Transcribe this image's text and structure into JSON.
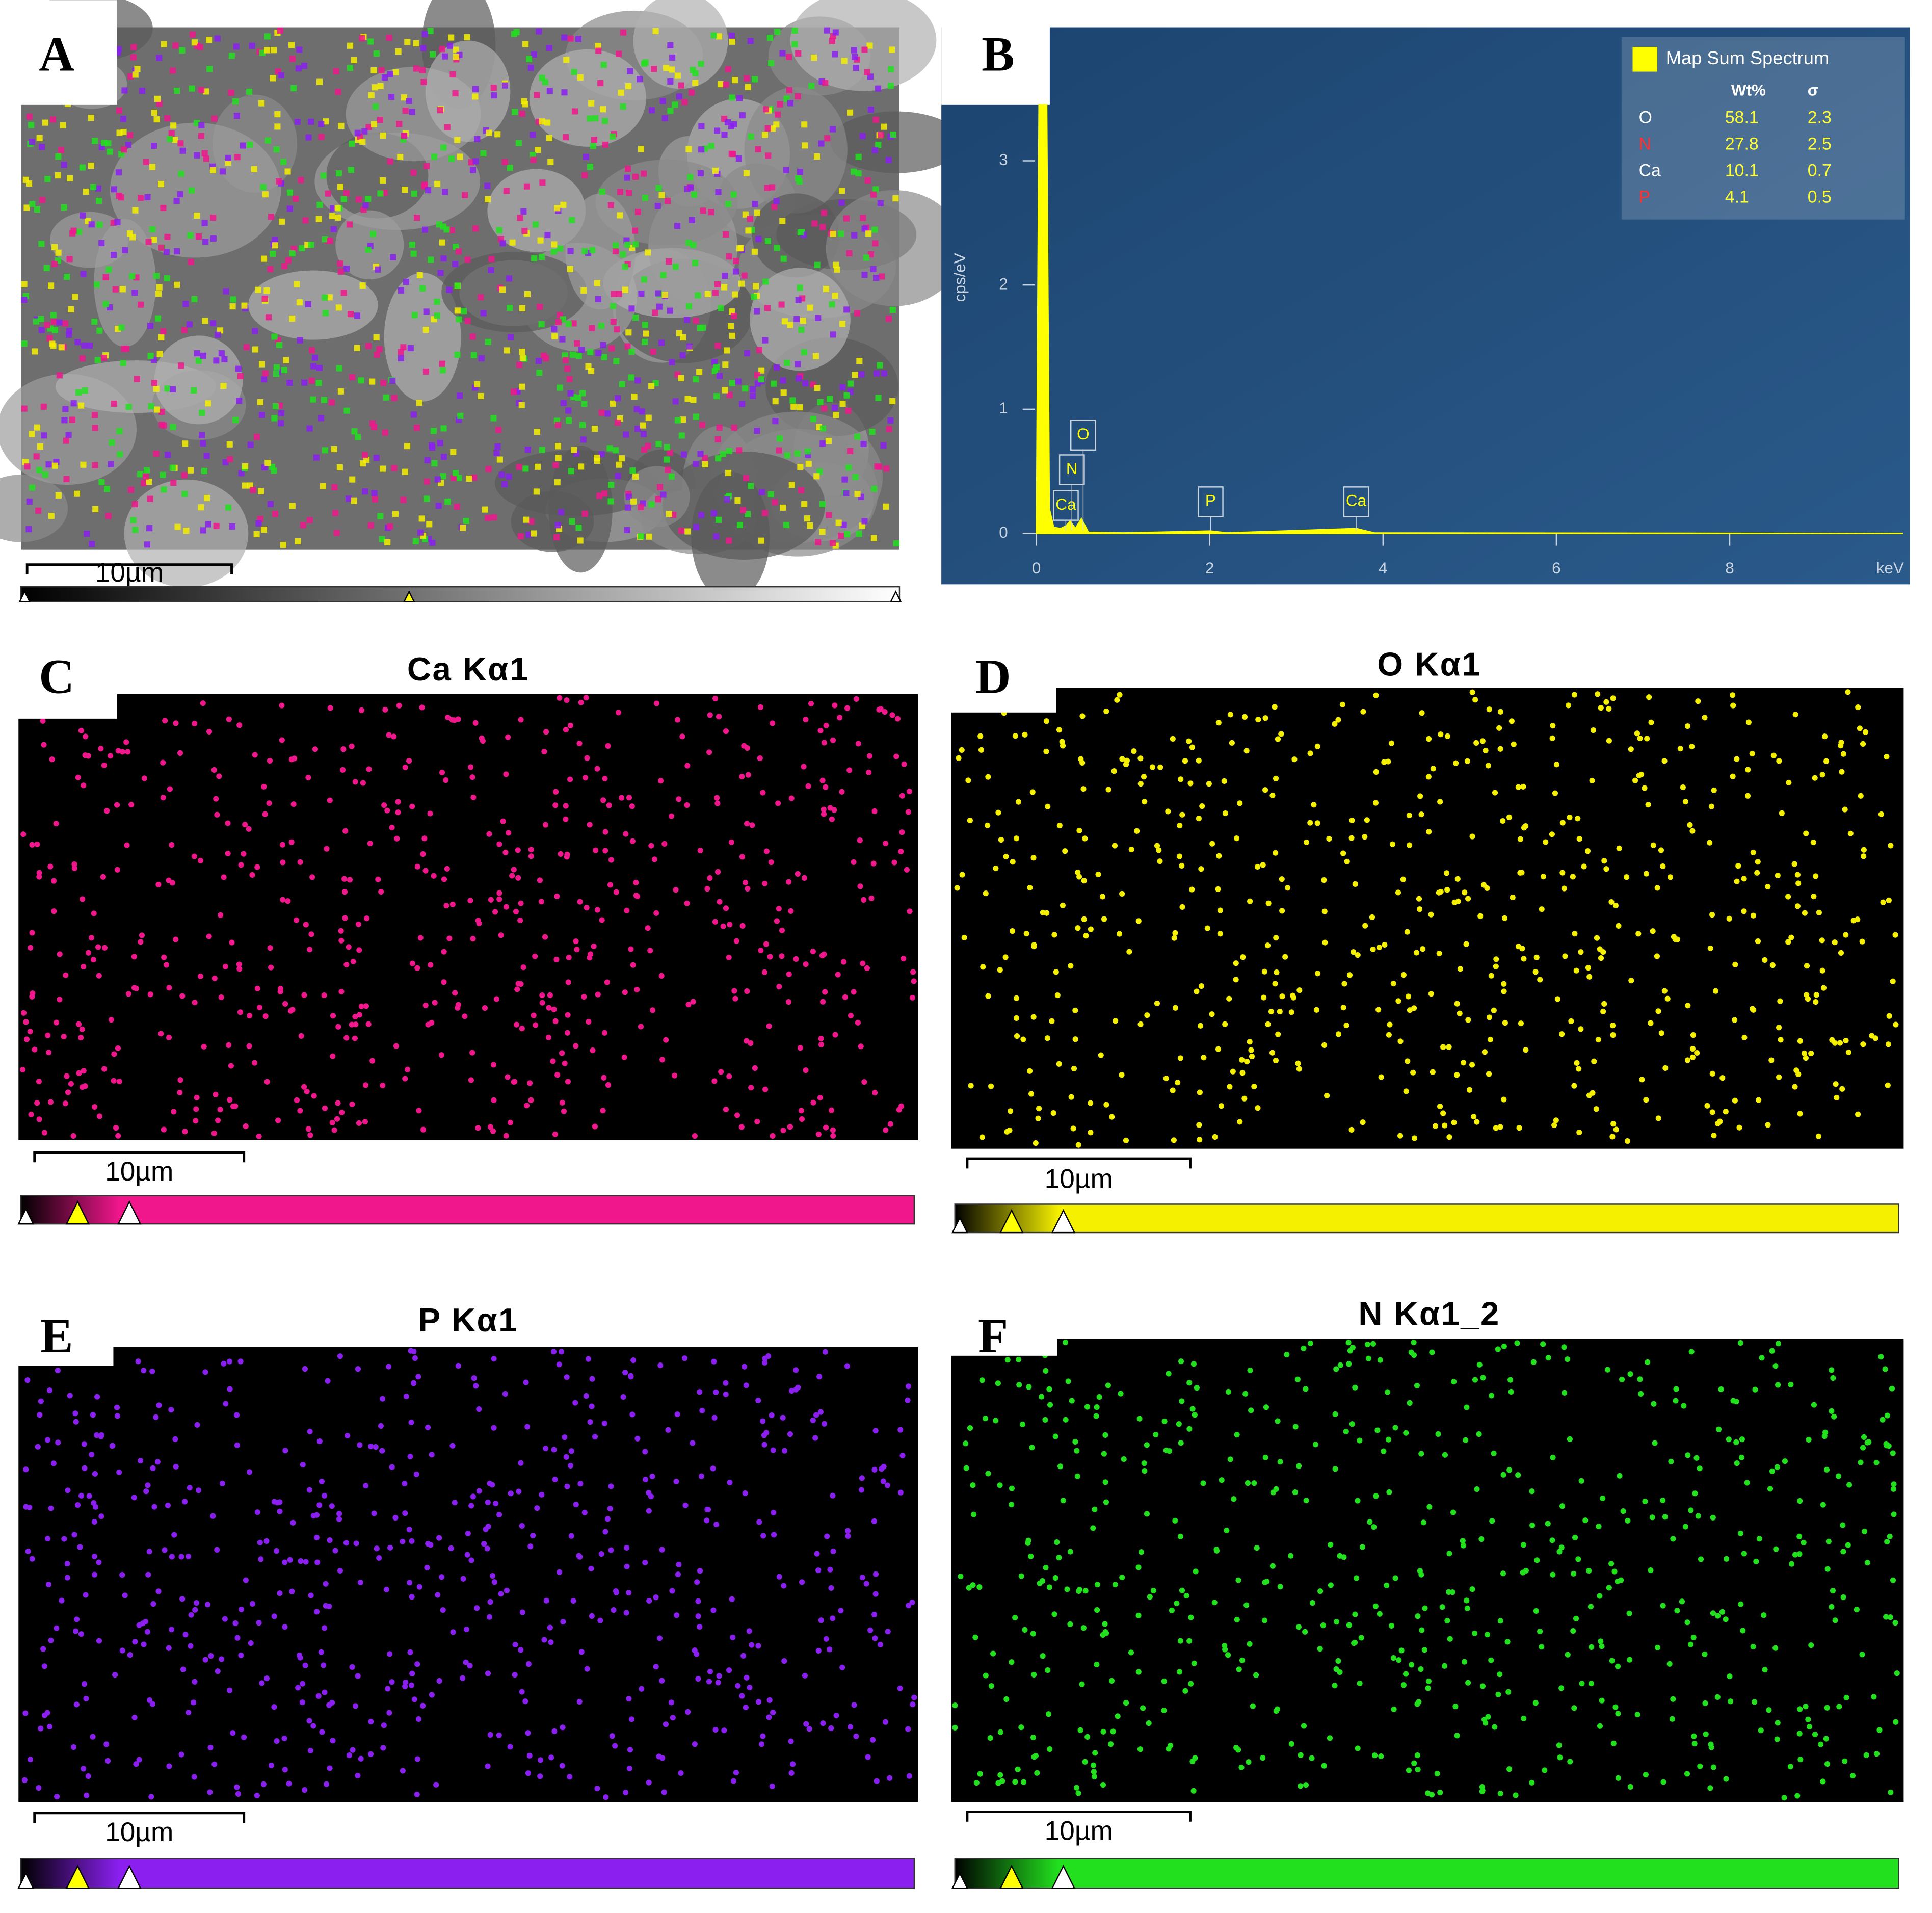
{
  "panels": [
    {
      "label": "A",
      "scale_bar": "10µm"
    },
    {
      "label": "B"
    },
    {
      "label": "C",
      "title": "Ca Kα1",
      "scale_bar": "10µm",
      "color": "#f0168c"
    },
    {
      "label": "D",
      "title": "O Kα1",
      "scale_bar": "10µm",
      "color": "#f5f000"
    },
    {
      "label": "E",
      "title": "P Kα1",
      "scale_bar": "10µm",
      "color": "#8a1ff0"
    },
    {
      "label": "F",
      "title": "N Kα1_2",
      "scale_bar": "10µm",
      "color": "#22e01e"
    }
  ],
  "chart_data": {
    "type": "area",
    "y_label": "cps/eV",
    "x_label": "keV",
    "color": "#ffff00",
    "x": [
      0,
      0.03,
      0.12,
      0.15,
      0.2,
      0.28,
      0.34,
      0.39,
      0.45,
      0.52,
      0.6,
      1.0,
      2.01,
      2.2,
      3.69,
      3.9,
      10
    ],
    "values": [
      0,
      3.45,
      3.45,
      0.2,
      0.05,
      0.04,
      0.06,
      0.1,
      0.04,
      0.12,
      0.01,
      0.005,
      0.02,
      0.005,
      0.04,
      0.005,
      0
    ],
    "xlim": [
      -0.3,
      10.05
    ],
    "ylim": [
      -0.37,
      3.45
    ],
    "xticks": [
      0,
      2,
      4,
      6,
      8
    ],
    "yticks": [
      0,
      1,
      2,
      3
    ],
    "annotations": [
      {
        "text": "Ca",
        "x": 0.34
      },
      {
        "text": "N",
        "x": 0.41
      },
      {
        "text": "O",
        "x": 0.54
      },
      {
        "text": "P",
        "x": 2.01
      },
      {
        "text": "Ca",
        "x": 3.69
      }
    ],
    "legend": {
      "title": "Map Sum Spectrum",
      "headers": [
        "Wt%",
        "σ"
      ],
      "rows": [
        {
          "element": "O",
          "color": "#ffffff",
          "wt": 58.1,
          "sigma": 2.3
        },
        {
          "element": "N",
          "color": "#ff3030",
          "wt": 27.8,
          "sigma": 2.5
        },
        {
          "element": "Ca",
          "color": "#ffffff",
          "wt": 10.1,
          "sigma": 0.7
        },
        {
          "element": "P",
          "color": "#ff3030",
          "wt": 4.1,
          "sigma": 0.5
        }
      ]
    }
  }
}
